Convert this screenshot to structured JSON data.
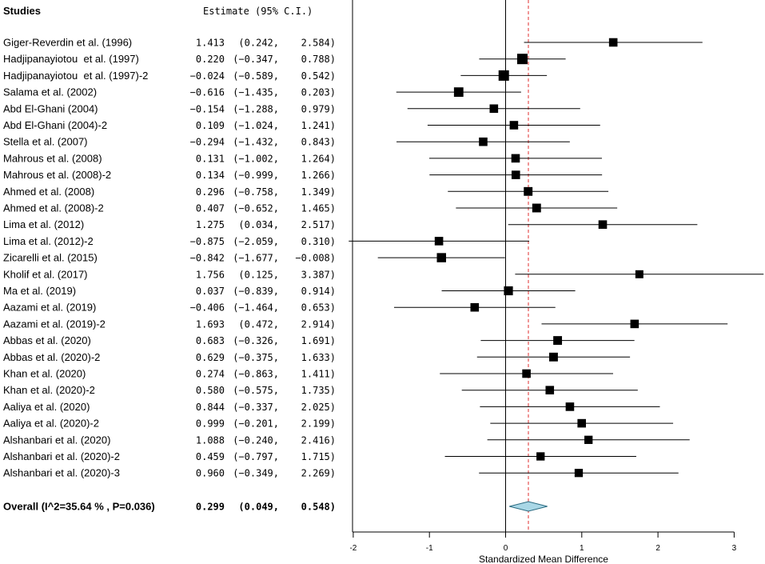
{
  "chart_data": {
    "type": "forest",
    "header_studies": "Studies",
    "header_estimate": "Estimate (95% C.I.)",
    "xlabel": "Standardized Mean Difference",
    "xlim": [
      -2,
      3
    ],
    "ticks": [
      -2,
      -1,
      0,
      1,
      2,
      3
    ],
    "tick_labels": [
      "-2",
      "-1",
      "0",
      "1",
      "2",
      "3"
    ],
    "reference_line": 0,
    "pooled_line": 0.299,
    "colors": {
      "pooled_line": "#e03030",
      "diamond_fill": "#a9d7e6",
      "diamond_stroke": "#2a6a80",
      "marker": "#000000"
    },
    "studies": [
      {
        "name": "Giger-Reverdin et al. (1996)",
        "est": "1.413",
        "lo": "(0.242,",
        "hi": "2.584)",
        "e": 1.413,
        "l": 0.242,
        "h": 2.584,
        "w": 0.6
      },
      {
        "name": "Hadjipanayiotou  et al. (1997)",
        "est": "0.220",
        "lo": "(−0.347,",
        "hi": "0.788)",
        "e": 0.22,
        "l": -0.347,
        "h": 0.788,
        "w": 1.0
      },
      {
        "name": "Hadjipanayiotou  et al. (1997)-2",
        "est": "−0.024",
        "lo": "(−0.589,",
        "hi": "0.542)",
        "e": -0.024,
        "l": -0.589,
        "h": 0.542,
        "w": 1.0
      },
      {
        "name": "Salama et al. (2002)",
        "est": "−0.616",
        "lo": "(−1.435,",
        "hi": "0.203)",
        "e": -0.616,
        "l": -1.435,
        "h": 0.203,
        "w": 0.8
      },
      {
        "name": "Abd El-Ghani (2004)",
        "est": "−0.154",
        "lo": "(−1.288,",
        "hi": "0.979)",
        "e": -0.154,
        "l": -1.288,
        "h": 0.979,
        "w": 0.6
      },
      {
        "name": "Abd El-Ghani (2004)-2",
        "est": "0.109",
        "lo": "(−1.024,",
        "hi": "1.241)",
        "e": 0.109,
        "l": -1.024,
        "h": 1.241,
        "w": 0.6
      },
      {
        "name": "Stella et al. (2007)",
        "est": "−0.294",
        "lo": "(−1.432,",
        "hi": "0.843)",
        "e": -0.294,
        "l": -1.432,
        "h": 0.843,
        "w": 0.6
      },
      {
        "name": "Mahrous et al. (2008)",
        "est": "0.131",
        "lo": "(−1.002,",
        "hi": "1.264)",
        "e": 0.131,
        "l": -1.002,
        "h": 1.264,
        "w": 0.6
      },
      {
        "name": "Mahrous et al. (2008)-2",
        "est": "0.134",
        "lo": "(−0.999,",
        "hi": "1.266)",
        "e": 0.134,
        "l": -0.999,
        "h": 1.266,
        "w": 0.6
      },
      {
        "name": "Ahmed et al. (2008)",
        "est": "0.296",
        "lo": "(−0.758,",
        "hi": "1.349)",
        "e": 0.296,
        "l": -0.758,
        "h": 1.349,
        "w": 0.65
      },
      {
        "name": "Ahmed et al. (2008)-2",
        "est": "0.407",
        "lo": "(−0.652,",
        "hi": "1.465)",
        "e": 0.407,
        "l": -0.652,
        "h": 1.465,
        "w": 0.65
      },
      {
        "name": "Lima et al. (2012)",
        "est": "1.275",
        "lo": "(0.034,",
        "hi": "2.517)",
        "e": 1.275,
        "l": 0.034,
        "h": 2.517,
        "w": 0.6
      },
      {
        "name": "Lima et al. (2012)-2",
        "est": "−0.875",
        "lo": "(−2.059,",
        "hi": "0.310)",
        "e": -0.875,
        "l": -2.059,
        "h": 0.31,
        "w": 0.6
      },
      {
        "name": "Zicarelli et al. (2015)",
        "est": "−0.842",
        "lo": "(−1.677,",
        "hi": "−0.008)",
        "e": -0.842,
        "l": -1.677,
        "h": -0.008,
        "w": 0.75
      },
      {
        "name": "Kholif et al. (2017)",
        "est": "1.756",
        "lo": "(0.125,",
        "hi": "3.387)",
        "e": 1.756,
        "l": 0.125,
        "h": 3.387,
        "w": 0.5
      },
      {
        "name": "Ma et al. (2019)",
        "est": "0.037",
        "lo": "(−0.839,",
        "hi": "0.914)",
        "e": 0.037,
        "l": -0.839,
        "h": 0.914,
        "w": 0.7
      },
      {
        "name": "Aazami et al. (2019)",
        "est": "−0.406",
        "lo": "(−1.464,",
        "hi": "0.653)",
        "e": -0.406,
        "l": -1.464,
        "h": 0.653,
        "w": 0.6
      },
      {
        "name": "Aazami et al. (2019)-2",
        "est": "1.693",
        "lo": "(0.472,",
        "hi": "2.914)",
        "e": 1.693,
        "l": 0.472,
        "h": 2.914,
        "w": 0.6
      },
      {
        "name": "Abbas et al. (2020)",
        "est": "0.683",
        "lo": "(−0.326,",
        "hi": "1.691)",
        "e": 0.683,
        "l": -0.326,
        "h": 1.691,
        "w": 0.65
      },
      {
        "name": "Abbas et al. (2020)-2",
        "est": "0.629",
        "lo": "(−0.375,",
        "hi": "1.633)",
        "e": 0.629,
        "l": -0.375,
        "h": 1.633,
        "w": 0.65
      },
      {
        "name": "Khan et al. (2020)",
        "est": "0.274",
        "lo": "(−0.863,",
        "hi": "1.411)",
        "e": 0.274,
        "l": -0.863,
        "h": 1.411,
        "w": 0.6
      },
      {
        "name": "Khan et al. (2020)-2",
        "est": "0.580",
        "lo": "(−0.575,",
        "hi": "1.735)",
        "e": 0.58,
        "l": -0.575,
        "h": 1.735,
        "w": 0.6
      },
      {
        "name": "Aaliya et al. (2020)",
        "est": "0.844",
        "lo": "(−0.337,",
        "hi": "2.025)",
        "e": 0.844,
        "l": -0.337,
        "h": 2.025,
        "w": 0.6
      },
      {
        "name": "Aaliya et al. (2020)-2",
        "est": "0.999",
        "lo": "(−0.201,",
        "hi": "2.199)",
        "e": 0.999,
        "l": -0.201,
        "h": 2.199,
        "w": 0.6
      },
      {
        "name": "Alshanbari et al. (2020)",
        "est": "1.088",
        "lo": "(−0.240,",
        "hi": "2.416)",
        "e": 1.088,
        "l": -0.24,
        "h": 2.416,
        "w": 0.55
      },
      {
        "name": "Alshanbari et al. (2020)-2",
        "est": "0.459",
        "lo": "(−0.797,",
        "hi": "1.715)",
        "e": 0.459,
        "l": -0.797,
        "h": 1.715,
        "w": 0.55
      },
      {
        "name": "Alshanbari et al. (2020)-3",
        "est": "0.960",
        "lo": "(−0.349,",
        "hi": "2.269)",
        "e": 0.96,
        "l": -0.349,
        "h": 2.269,
        "w": 0.55
      }
    ],
    "overall": {
      "name": "Overall (I^2=35.64 % , P=0.036)",
      "est": "0.299",
      "lo": "(0.049,",
      "hi": "0.548)",
      "e": 0.299,
      "l": 0.049,
      "h": 0.548
    }
  }
}
